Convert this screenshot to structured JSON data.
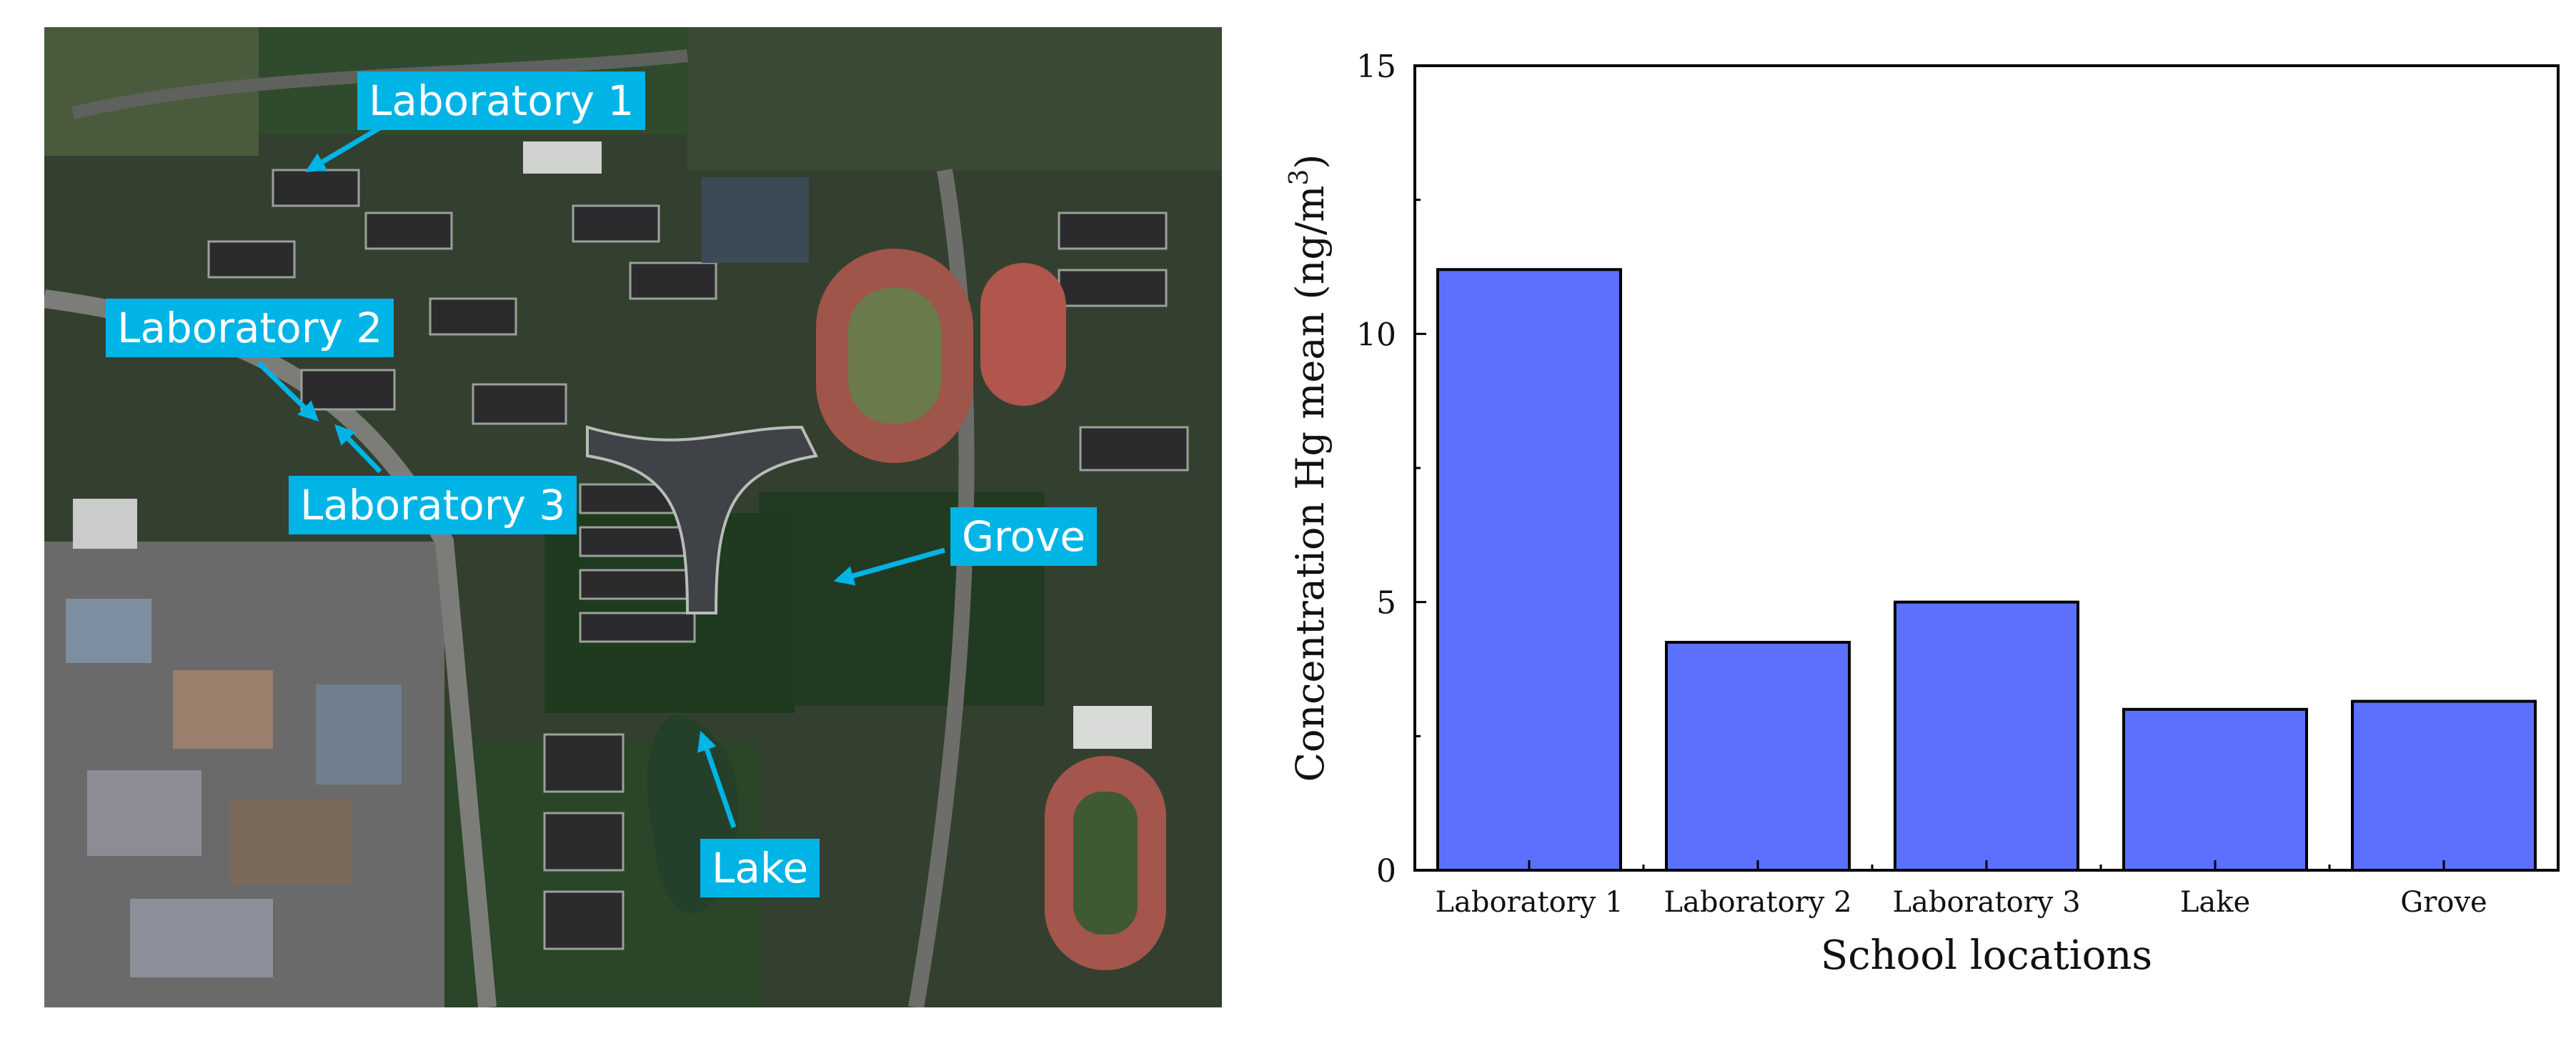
{
  "map": {
    "labels": [
      {
        "id": "lab1",
        "text": "Laboratory 1"
      },
      {
        "id": "lab2",
        "text": "Laboratory 2"
      },
      {
        "id": "lab3",
        "text": "Laboratory 3"
      },
      {
        "id": "grove",
        "text": "Grove"
      },
      {
        "id": "lake",
        "text": "Lake"
      }
    ],
    "label_color": "#00b4e6",
    "arrow_color": "#00b4e6"
  },
  "chart_data": {
    "type": "bar",
    "categories": [
      "Laboratory 1",
      "Laboratory 2",
      "Laboratory 3",
      "Lake",
      "Grove"
    ],
    "values": [
      11.2,
      4.25,
      5.0,
      3.0,
      3.15
    ],
    "xlabel": "School locations",
    "ylabel": "Concentration Hg mean (ng/m3)",
    "ylim": [
      0,
      15
    ],
    "yticks": [
      0,
      5,
      10,
      15
    ],
    "bar_color": "#5b71fd",
    "grid": false,
    "legend": false
  }
}
